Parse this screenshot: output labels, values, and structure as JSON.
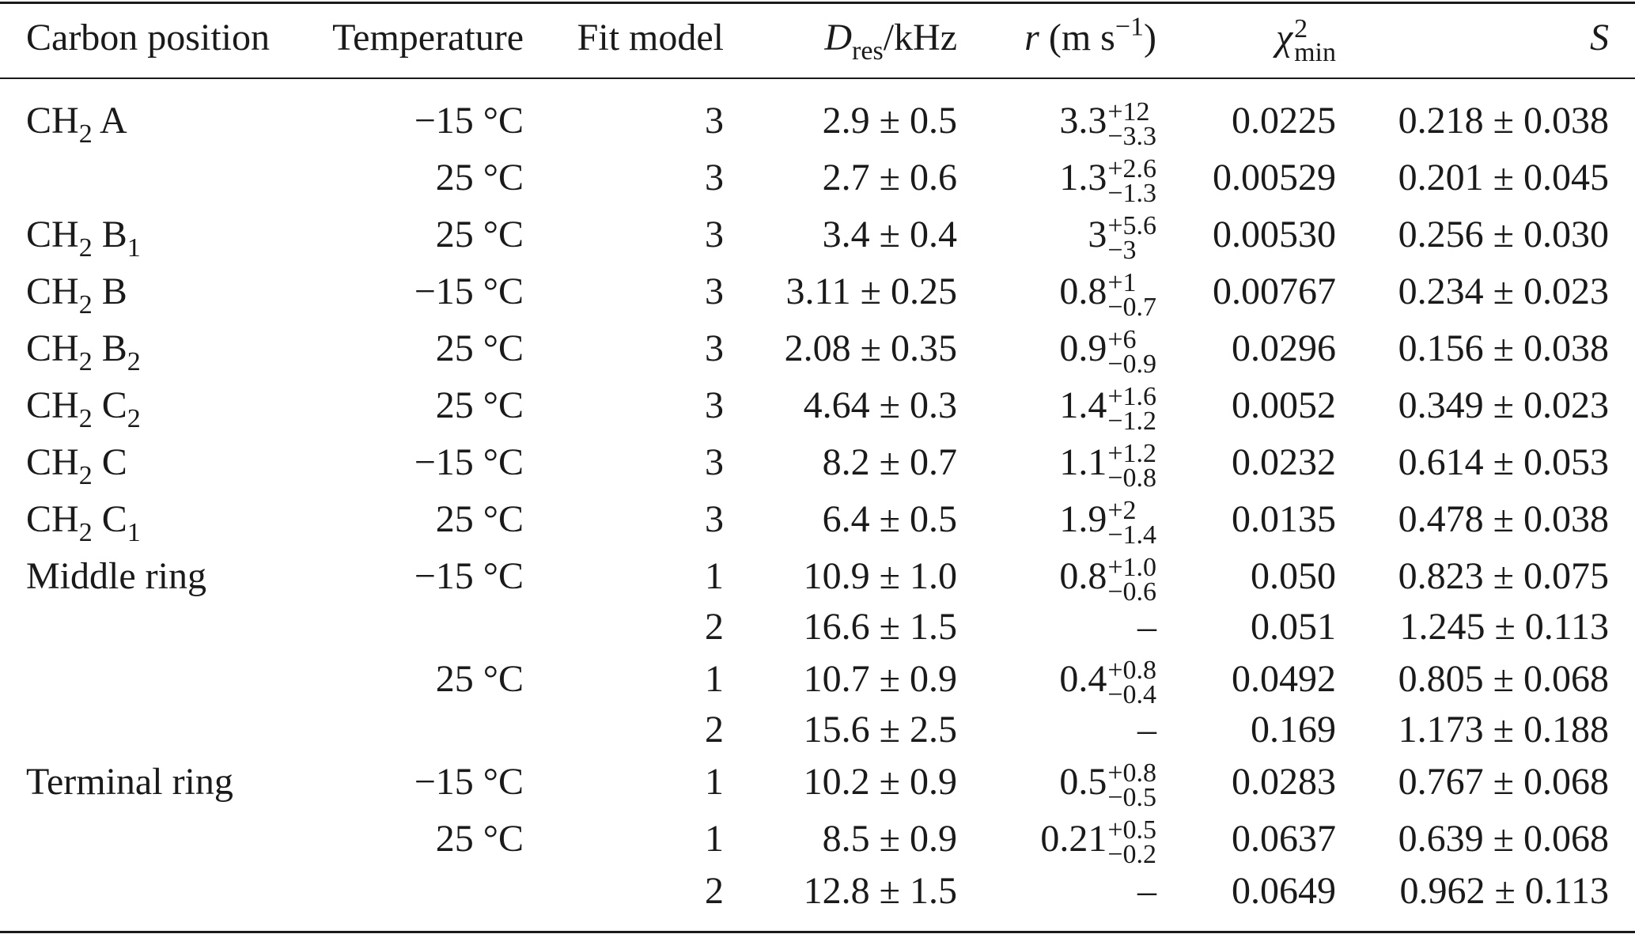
{
  "header": {
    "carbon_position": "Carbon position",
    "temperature": "Temperature",
    "fit_model": "Fit model",
    "d_res_main": "D",
    "d_res_sub": "res",
    "d_res_unit": "/kHz",
    "r_symbol": "r",
    "r_unit_open": "(m s",
    "r_unit_exp": "−1",
    "r_unit_close": ")",
    "chi_symbol": "χ",
    "chi_sup": "2",
    "chi_sub": "min",
    "s_symbol": "S"
  },
  "rows": [
    {
      "pos_main": "CH",
      "pos_sub": "2",
      "pos_label": " A",
      "pos_label_sub": "",
      "temp": "−15 °C",
      "fit": "3",
      "d_res": "2.9 ± 0.5",
      "r_base": "3.3",
      "r_plus": "+12",
      "r_minus": "−3.3",
      "r_plain": "",
      "chi": "0.0225",
      "s": "0.218 ± 0.038"
    },
    {
      "pos_main": "",
      "pos_sub": "",
      "pos_label": "",
      "pos_label_sub": "",
      "temp": "25 °C",
      "fit": "3",
      "d_res": "2.7 ± 0.6",
      "r_base": "1.3",
      "r_plus": "+2.6",
      "r_minus": "−1.3",
      "r_plain": "",
      "chi": "0.00529",
      "s": "0.201 ± 0.045"
    },
    {
      "pos_main": "CH",
      "pos_sub": "2",
      "pos_label": " B",
      "pos_label_sub": "1",
      "temp": "25 °C",
      "fit": "3",
      "d_res": "3.4 ± 0.4",
      "r_base": "3",
      "r_plus": "+5.6",
      "r_minus": "−3",
      "r_plain": "",
      "chi": "0.00530",
      "s": "0.256 ± 0.030"
    },
    {
      "pos_main": "CH",
      "pos_sub": "2",
      "pos_label": " B",
      "pos_label_sub": "",
      "temp": "−15 °C",
      "fit": "3",
      "d_res": "3.11 ± 0.25",
      "r_base": "0.8",
      "r_plus": "+1",
      "r_minus": "−0.7",
      "r_plain": "",
      "chi": "0.00767",
      "s": "0.234 ± 0.023"
    },
    {
      "pos_main": "CH",
      "pos_sub": "2",
      "pos_label": " B",
      "pos_label_sub": "2",
      "temp": "25 °C",
      "fit": "3",
      "d_res": "2.08 ± 0.35",
      "r_base": "0.9",
      "r_plus": "+6",
      "r_minus": "−0.9",
      "r_plain": "",
      "chi": "0.0296",
      "s": "0.156 ± 0.038"
    },
    {
      "pos_main": "CH",
      "pos_sub": "2",
      "pos_label": " C",
      "pos_label_sub": "2",
      "temp": "25 °C",
      "fit": "3",
      "d_res": "4.64 ± 0.3",
      "r_base": "1.4",
      "r_plus": "+1.6",
      "r_minus": "−1.2",
      "r_plain": "",
      "chi": "0.0052",
      "s": "0.349 ± 0.023"
    },
    {
      "pos_main": "CH",
      "pos_sub": "2",
      "pos_label": " C",
      "pos_label_sub": "",
      "temp": "−15 °C",
      "fit": "3",
      "d_res": "8.2 ± 0.7",
      "r_base": "1.1",
      "r_plus": "+1.2",
      "r_minus": "−0.8",
      "r_plain": "",
      "chi": "0.0232",
      "s": "0.614 ± 0.053"
    },
    {
      "pos_main": "CH",
      "pos_sub": "2",
      "pos_label": " C",
      "pos_label_sub": "1",
      "temp": "25 °C",
      "fit": "3",
      "d_res": "6.4 ± 0.5",
      "r_base": "1.9",
      "r_plus": "+2",
      "r_minus": "−1.4",
      "r_plain": "",
      "chi": "0.0135",
      "s": "0.478 ± 0.038"
    },
    {
      "pos_main": "Middle ring",
      "pos_sub": "",
      "pos_label": "",
      "pos_label_sub": "",
      "temp": "−15 °C",
      "fit": "1",
      "d_res": "10.9 ± 1.0",
      "r_base": "0.8",
      "r_plus": "+1.0",
      "r_minus": "−0.6",
      "r_plain": "",
      "chi": "0.050",
      "s": "0.823 ± 0.075"
    },
    {
      "pos_main": "",
      "pos_sub": "",
      "pos_label": "",
      "pos_label_sub": "",
      "temp": "",
      "fit": "2",
      "d_res": "16.6 ± 1.5",
      "r_base": "",
      "r_plus": "",
      "r_minus": "",
      "r_plain": "–",
      "chi": "0.051",
      "s": "1.245 ± 0.113"
    },
    {
      "pos_main": "",
      "pos_sub": "",
      "pos_label": "",
      "pos_label_sub": "",
      "temp": "25 °C",
      "fit": "1",
      "d_res": "10.7 ± 0.9",
      "r_base": "0.4",
      "r_plus": "+0.8",
      "r_minus": "−0.4",
      "r_plain": "",
      "chi": "0.0492",
      "s": "0.805 ± 0.068"
    },
    {
      "pos_main": "",
      "pos_sub": "",
      "pos_label": "",
      "pos_label_sub": "",
      "temp": "",
      "fit": "2",
      "d_res": "15.6 ± 2.5",
      "r_base": "",
      "r_plus": "",
      "r_minus": "",
      "r_plain": "–",
      "chi": "0.169",
      "s": "1.173 ± 0.188"
    },
    {
      "pos_main": "Terminal ring",
      "pos_sub": "",
      "pos_label": "",
      "pos_label_sub": "",
      "temp": "−15 °C",
      "fit": "1",
      "d_res": "10.2 ± 0.9",
      "r_base": "0.5",
      "r_plus": "+0.8",
      "r_minus": "−0.5",
      "r_plain": "",
      "chi": "0.0283",
      "s": "0.767 ± 0.068"
    },
    {
      "pos_main": "",
      "pos_sub": "",
      "pos_label": "",
      "pos_label_sub": "",
      "temp": "25 °C",
      "fit": "1",
      "d_res": "8.5 ± 0.9",
      "r_base": "0.21",
      "r_plus": "+0.5",
      "r_minus": "−0.2",
      "r_plain": "",
      "chi": "0.0637",
      "s": "0.639 ± 0.068"
    },
    {
      "pos_main": "",
      "pos_sub": "",
      "pos_label": "",
      "pos_label_sub": "",
      "temp": "",
      "fit": "2",
      "d_res": "12.8 ± 1.5",
      "r_base": "",
      "r_plus": "",
      "r_minus": "",
      "r_plain": "–",
      "chi": "0.0649",
      "s": "0.962 ± 0.113"
    }
  ]
}
